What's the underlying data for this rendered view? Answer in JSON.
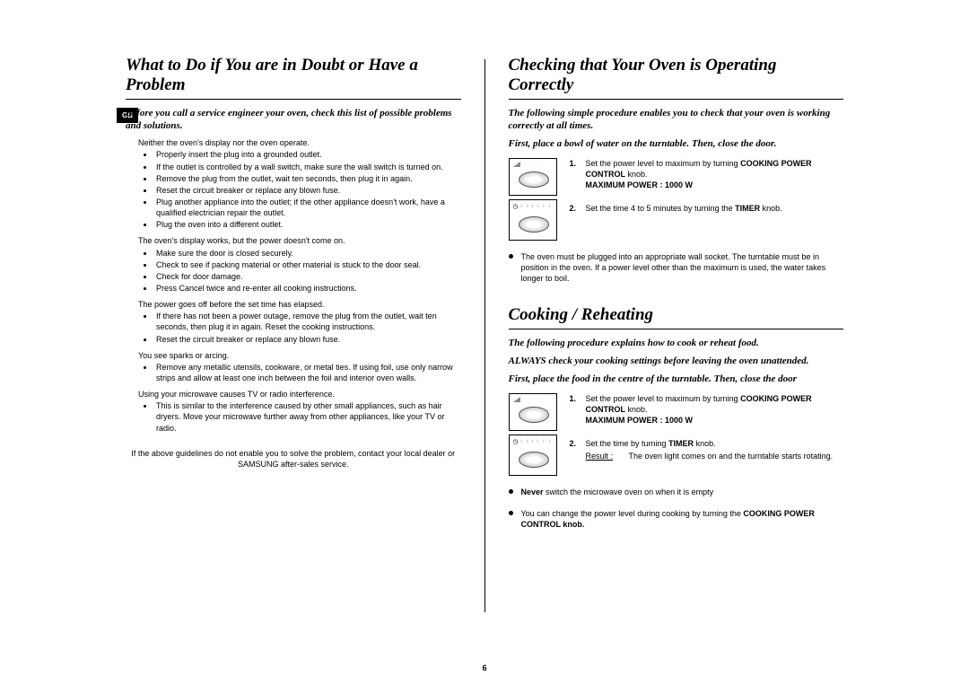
{
  "locale_tab": "GB",
  "page_number": "6",
  "left": {
    "title": "What to Do if You are in Doubt or Have a Problem",
    "intro": "Before you call a service engineer your oven, check this list of possible problems and solutions.",
    "groups": [
      {
        "q": "Neither the oven's display nor the oven operate.",
        "a": [
          "Properly insert the plug into a grounded outlet.",
          "If the outlet is controlled by a wall switch, make sure the wall switch is turned on.",
          "Remove the plug from the outlet, wait ten seconds, then plug it in again.",
          "Reset the circuit breaker or replace any blown fuse.",
          "Plug another appliance into the outlet; if the other appliance doesn't work, have a qualified electrician repair the outlet.",
          "Plug the oven into a different outlet."
        ]
      },
      {
        "q": "The oven's display works, but the power doesn't come on.",
        "a": [
          "Make sure the door is closed securely.",
          "Check to see if packing material or other material is stuck to the door seal.",
          "Check for door damage.",
          "Press Cancel twice and re-enter all cooking instructions."
        ]
      },
      {
        "q": "The power goes off before the set time has elapsed.",
        "a": [
          "If there has not been a power outage, remove the plug from the outlet, wait ten seconds, then plug it in again. Reset the cooking instructions.",
          "Reset the circuit breaker or replace any blown fuse."
        ]
      },
      {
        "q": "You see sparks or arcing.",
        "a": [
          "Remove any metallic utensils, cookware, or metal ties. If using foil, use only narrow strips and allow at least one inch between the foil and interior oven walls."
        ]
      },
      {
        "q": "Using your microwave causes TV or radio interference.",
        "a": [
          "This is similar to the interference caused by other small appliances, such as hair dryers. Move your microwave further away from other appliances, like your TV or radio."
        ]
      }
    ],
    "footer_note": "If the above guidelines do not enable you to solve the problem, contact your local dealer or SAMSUNG after-sales service."
  },
  "right_a": {
    "title": "Checking that Your Oven is Operating Correctly",
    "intro1": "The following simple procedure enables you to check that your oven is working correctly at all times.",
    "intro2": "First, place a bowl of water on the turntable. Then, close the door.",
    "step1_a": "Set the power level to maximum by turning ",
    "step1_b": "COOKING POWER CONTROL",
    "step1_c": " knob.",
    "step1_d": "MAXIMUM POWER : 1000 W",
    "step2_a": "Set the time 4 to 5 minutes by turning the ",
    "step2_b": "TIMER",
    "step2_c": " knob.",
    "note": "The oven must be plugged into an appropriate wall socket. The turntable must be in position in the oven. If a power level other than the maximum is used, the water takes longer to boil."
  },
  "right_b": {
    "title": "Cooking / Reheating",
    "intro1": "The following procedure explains how to cook or reheat food.",
    "intro2": "ALWAYS check your cooking settings before leaving the oven unattended.",
    "intro3": "First, place the food in the centre of the turntable. Then, close the door",
    "step1_a": "Set the power level to maximum by turning ",
    "step1_b": "COOKING POWER CONTROL",
    "step1_c": " knob.",
    "step1_d": "MAXIMUM POWER : 1000 W",
    "step2_a": "Set the time by turning ",
    "step2_b": "TIMER",
    "step2_c": " knob.",
    "result_label": "Result :",
    "result_text": "The oven light comes on and the turntable starts rotating.",
    "warn_b": "Never",
    "warn_t": " switch the microwave oven on when it is empty",
    "foot_a": "You can change the power level during cooking by turning the ",
    "foot_b": "COOKING POWER CONTROL knob."
  }
}
